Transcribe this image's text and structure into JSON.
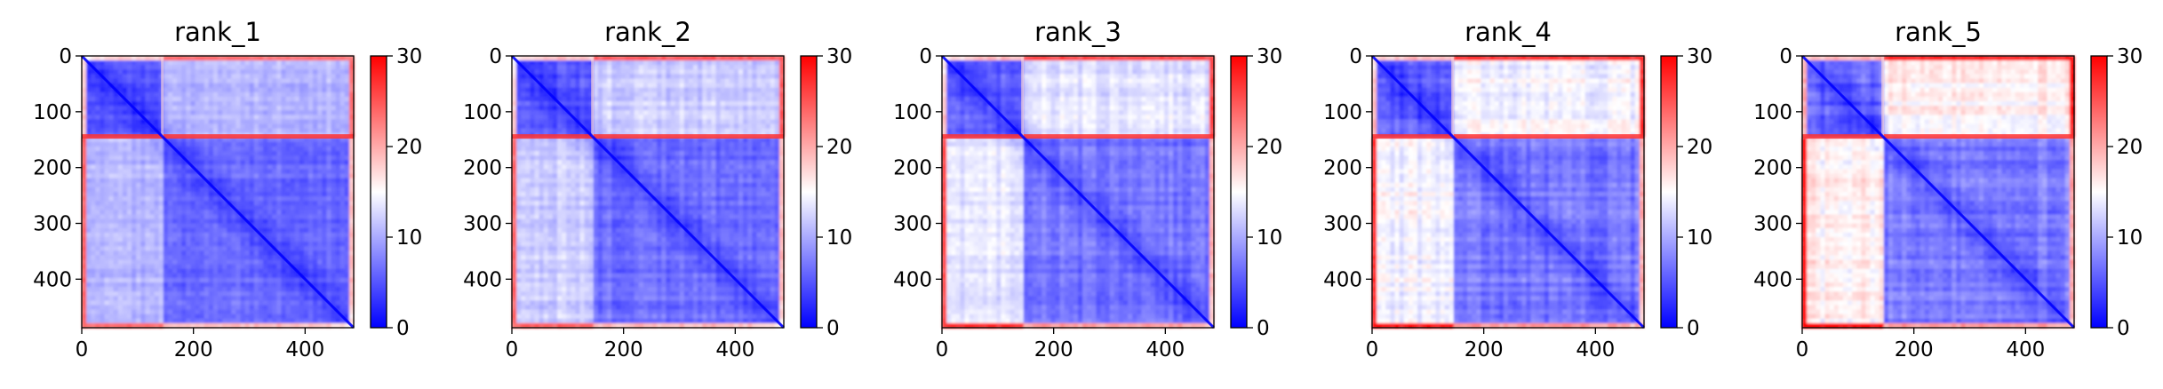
{
  "chart_data": [
    {
      "type": "heatmap",
      "title": "rank_1",
      "x_ticks": [
        0,
        200,
        400
      ],
      "y_ticks": [
        0,
        100,
        200,
        300,
        400
      ],
      "xlim": [
        0,
        487
      ],
      "ylim": [
        487,
        0
      ],
      "matrix_size": 487,
      "domain_boundary": 145,
      "colorbar": {
        "min": 0,
        "max": 30,
        "ticks": [
          0,
          10,
          20,
          30
        ],
        "colors": [
          "#0000ff",
          "#ffffff",
          "#ff0000"
        ]
      },
      "cmap": "bwr"
    },
    {
      "type": "heatmap",
      "title": "rank_2",
      "x_ticks": [
        0,
        200,
        400
      ],
      "y_ticks": [
        0,
        100,
        200,
        300,
        400
      ],
      "xlim": [
        0,
        487
      ],
      "ylim": [
        487,
        0
      ],
      "matrix_size": 487,
      "domain_boundary": 145,
      "colorbar": {
        "min": 0,
        "max": 30,
        "ticks": [
          0,
          10,
          20,
          30
        ],
        "colors": [
          "#0000ff",
          "#ffffff",
          "#ff0000"
        ]
      },
      "cmap": "bwr"
    },
    {
      "type": "heatmap",
      "title": "rank_3",
      "x_ticks": [
        0,
        200,
        400
      ],
      "y_ticks": [
        0,
        100,
        200,
        300,
        400
      ],
      "xlim": [
        0,
        487
      ],
      "ylim": [
        487,
        0
      ],
      "matrix_size": 487,
      "domain_boundary": 145,
      "colorbar": {
        "min": 0,
        "max": 30,
        "ticks": [
          0,
          10,
          20,
          30
        ],
        "colors": [
          "#0000ff",
          "#ffffff",
          "#ff0000"
        ]
      },
      "cmap": "bwr"
    },
    {
      "type": "heatmap",
      "title": "rank_4",
      "x_ticks": [
        0,
        200,
        400
      ],
      "y_ticks": [
        0,
        100,
        200,
        300,
        400
      ],
      "xlim": [
        0,
        487
      ],
      "ylim": [
        487,
        0
      ],
      "matrix_size": 487,
      "domain_boundary": 145,
      "colorbar": {
        "min": 0,
        "max": 30,
        "ticks": [
          0,
          10,
          20,
          30
        ],
        "colors": [
          "#0000ff",
          "#ffffff",
          "#ff0000"
        ]
      },
      "cmap": "bwr"
    },
    {
      "type": "heatmap",
      "title": "rank_5",
      "x_ticks": [
        0,
        200,
        400
      ],
      "y_ticks": [
        0,
        100,
        200,
        300,
        400
      ],
      "xlim": [
        0,
        487
      ],
      "ylim": [
        487,
        0
      ],
      "matrix_size": 487,
      "domain_boundary": 145,
      "colorbar": {
        "min": 0,
        "max": 30,
        "ticks": [
          0,
          10,
          20,
          30
        ],
        "colors": [
          "#0000ff",
          "#ffffff",
          "#ff0000"
        ]
      },
      "cmap": "bwr"
    }
  ]
}
